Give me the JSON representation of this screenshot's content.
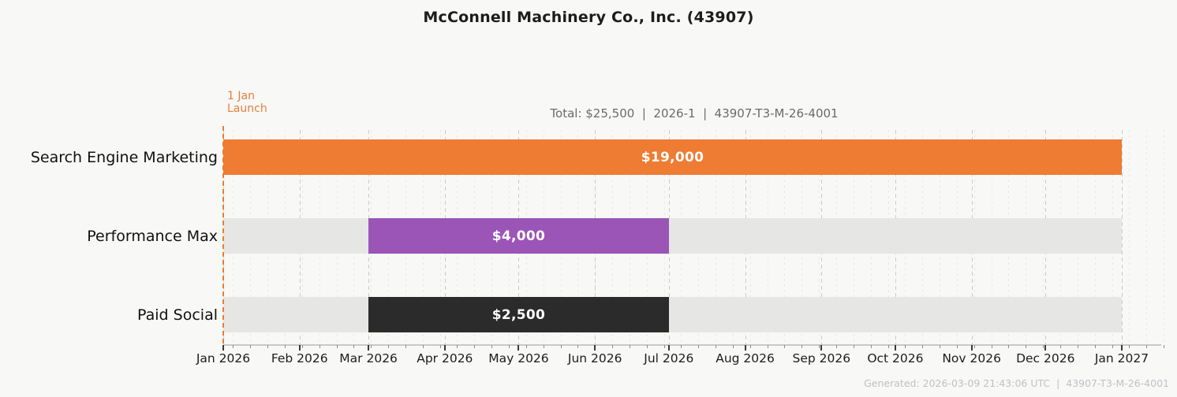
{
  "chart_data": {
    "type": "bar",
    "variant": "gantt-timeline",
    "title": "McConnell Machinery Co., Inc. (43907)",
    "subtitle": "Total: $25,500  |  2026-1  |  43907-T3-M-26-4001",
    "footer": "Generated: 2026-03-09 21:43:06 UTC  |  43907-T3-M-26-4001",
    "total_value": 25500,
    "launch": {
      "date": "2026-01-01",
      "line1": "1 Jan",
      "line2": "Launch",
      "color": "#ed7d31"
    },
    "x_start": "2026-01-01",
    "x_end": "2027-01-01",
    "weekly_grid_start": "2026-01-05",
    "x_ticks": [
      {
        "label": "Jan 2026",
        "date": "2026-01-01"
      },
      {
        "label": "Feb 2026",
        "date": "2026-02-01"
      },
      {
        "label": "Mar 2026",
        "date": "2026-03-01"
      },
      {
        "label": "Apr 2026",
        "date": "2026-04-01"
      },
      {
        "label": "May 2026",
        "date": "2026-05-01"
      },
      {
        "label": "Jun 2026",
        "date": "2026-06-01"
      },
      {
        "label": "Jul 2026",
        "date": "2026-07-01"
      },
      {
        "label": "Aug 2026",
        "date": "2026-08-01"
      },
      {
        "label": "Sep 2026",
        "date": "2026-09-01"
      },
      {
        "label": "Oct 2026",
        "date": "2026-10-01"
      },
      {
        "label": "Nov 2026",
        "date": "2026-11-01"
      },
      {
        "label": "Dec 2026",
        "date": "2026-12-01"
      },
      {
        "label": "Jan 2027",
        "date": "2027-01-01"
      }
    ],
    "categories": [
      "Search Engine Marketing",
      "Performance Max",
      "Paid Social"
    ],
    "series": [
      {
        "name": "Search Engine Marketing",
        "start": "2026-01-01",
        "end": "2027-01-01",
        "value": 19000,
        "value_label": "$19,000",
        "color": "#ee7c33"
      },
      {
        "name": "Performance Max",
        "start": "2026-03-01",
        "end": "2026-07-01",
        "value": 4000,
        "value_label": "$4,000",
        "color": "#9b55b7"
      },
      {
        "name": "Paid Social",
        "start": "2026-03-01",
        "end": "2026-07-01",
        "value": 2500,
        "value_label": "$2,500",
        "color": "#2b2b2b"
      }
    ],
    "colors": {
      "background": "#f8f8f6",
      "track": "#e6e6e4",
      "grid_month": "#cbcbca",
      "grid_week": "#e9e9e6",
      "axis": "#c9c9c7",
      "annotation": "#e4813c"
    }
  }
}
